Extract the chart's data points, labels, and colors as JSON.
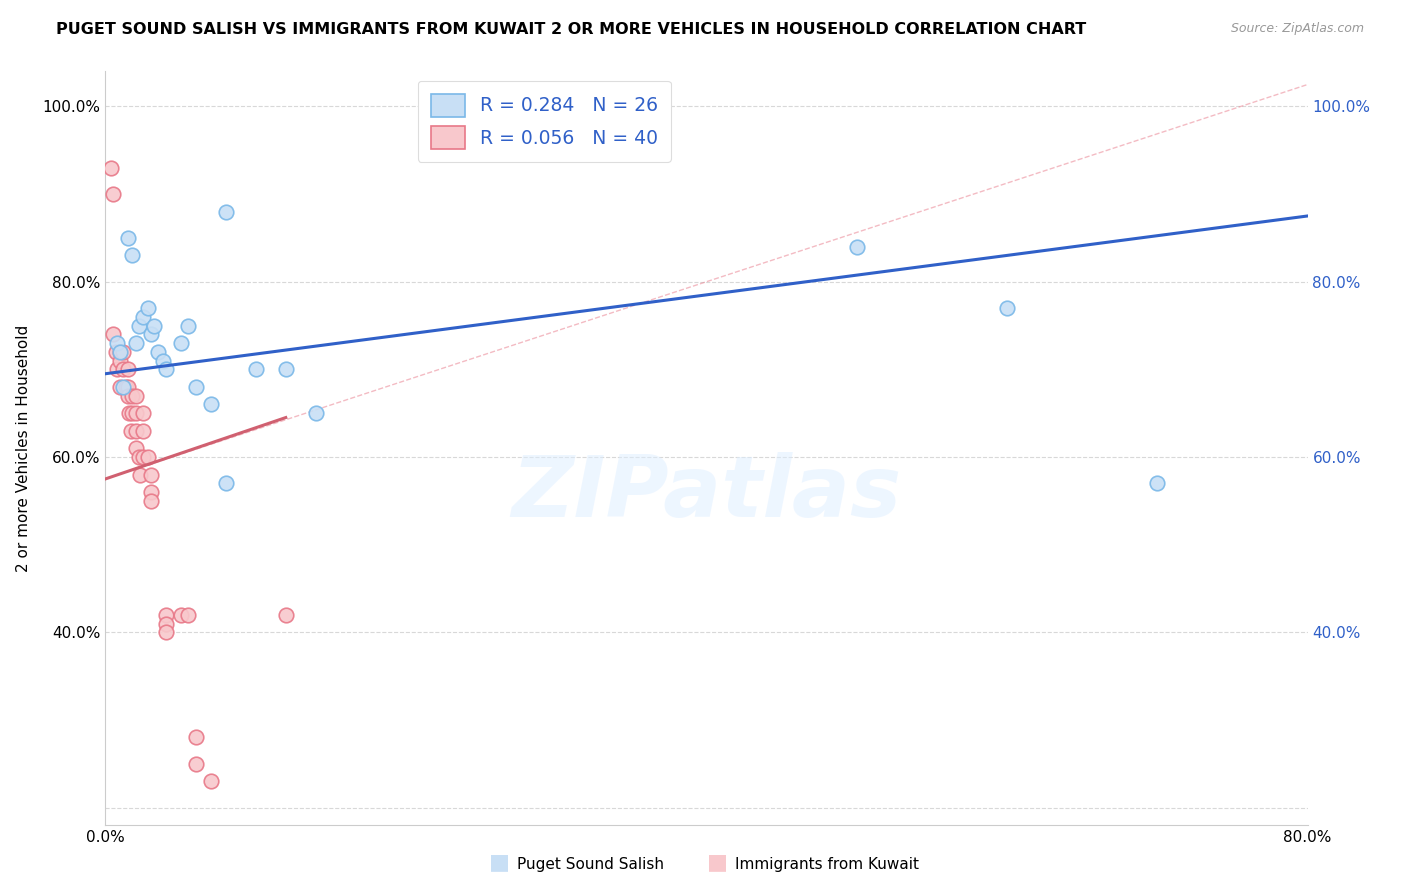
{
  "title": "PUGET SOUND SALISH VS IMMIGRANTS FROM KUWAIT 2 OR MORE VEHICLES IN HOUSEHOLD CORRELATION CHART",
  "source": "Source: ZipAtlas.com",
  "ylabel": "2 or more Vehicles in Household",
  "xlim": [
    0.0,
    0.8
  ],
  "ylim": [
    0.18,
    1.04
  ],
  "blue_dot_edge": "#7ab8e8",
  "blue_dot_fill": "#c8dff5",
  "pink_dot_edge": "#e87888",
  "pink_dot_fill": "#f8c8cc",
  "blue_line_color": "#3060c8",
  "pink_line_color": "#d06070",
  "dashed_line_color": "#d0d0d0",
  "grid_color": "#d8d8d8",
  "right_tick_color": "#3060c8",
  "blue_scatter_x": [
    0.008,
    0.01,
    0.015,
    0.018,
    0.02,
    0.022,
    0.025,
    0.028,
    0.03,
    0.032,
    0.035,
    0.038,
    0.04,
    0.05,
    0.055,
    0.06,
    0.07,
    0.08,
    0.08,
    0.1,
    0.12,
    0.14,
    0.5,
    0.6,
    0.7,
    0.012
  ],
  "blue_scatter_y": [
    0.73,
    0.72,
    0.85,
    0.83,
    0.73,
    0.75,
    0.76,
    0.77,
    0.74,
    0.75,
    0.72,
    0.71,
    0.7,
    0.73,
    0.75,
    0.68,
    0.66,
    0.57,
    0.88,
    0.7,
    0.7,
    0.65,
    0.84,
    0.77,
    0.57,
    0.68
  ],
  "pink_scatter_x": [
    0.004,
    0.005,
    0.005,
    0.007,
    0.008,
    0.01,
    0.01,
    0.01,
    0.012,
    0.012,
    0.014,
    0.015,
    0.015,
    0.015,
    0.016,
    0.017,
    0.018,
    0.018,
    0.02,
    0.02,
    0.02,
    0.02,
    0.022,
    0.023,
    0.025,
    0.025,
    0.025,
    0.028,
    0.03,
    0.03,
    0.03,
    0.04,
    0.04,
    0.04,
    0.05,
    0.055,
    0.06,
    0.06,
    0.07,
    0.12
  ],
  "pink_scatter_y": [
    0.93,
    0.9,
    0.74,
    0.72,
    0.7,
    0.72,
    0.71,
    0.68,
    0.72,
    0.7,
    0.68,
    0.7,
    0.68,
    0.67,
    0.65,
    0.63,
    0.67,
    0.65,
    0.67,
    0.65,
    0.63,
    0.61,
    0.6,
    0.58,
    0.65,
    0.63,
    0.6,
    0.6,
    0.58,
    0.56,
    0.55,
    0.42,
    0.41,
    0.4,
    0.42,
    0.42,
    0.28,
    0.25,
    0.23,
    0.42
  ],
  "watermark": "ZIPatlas",
  "legend_blue_label": "R = 0.284   N = 26",
  "legend_pink_label": "R = 0.056   N = 40",
  "bottom_label_blue": "Puget Sound Salish",
  "bottom_label_pink": "Immigrants from Kuwait"
}
